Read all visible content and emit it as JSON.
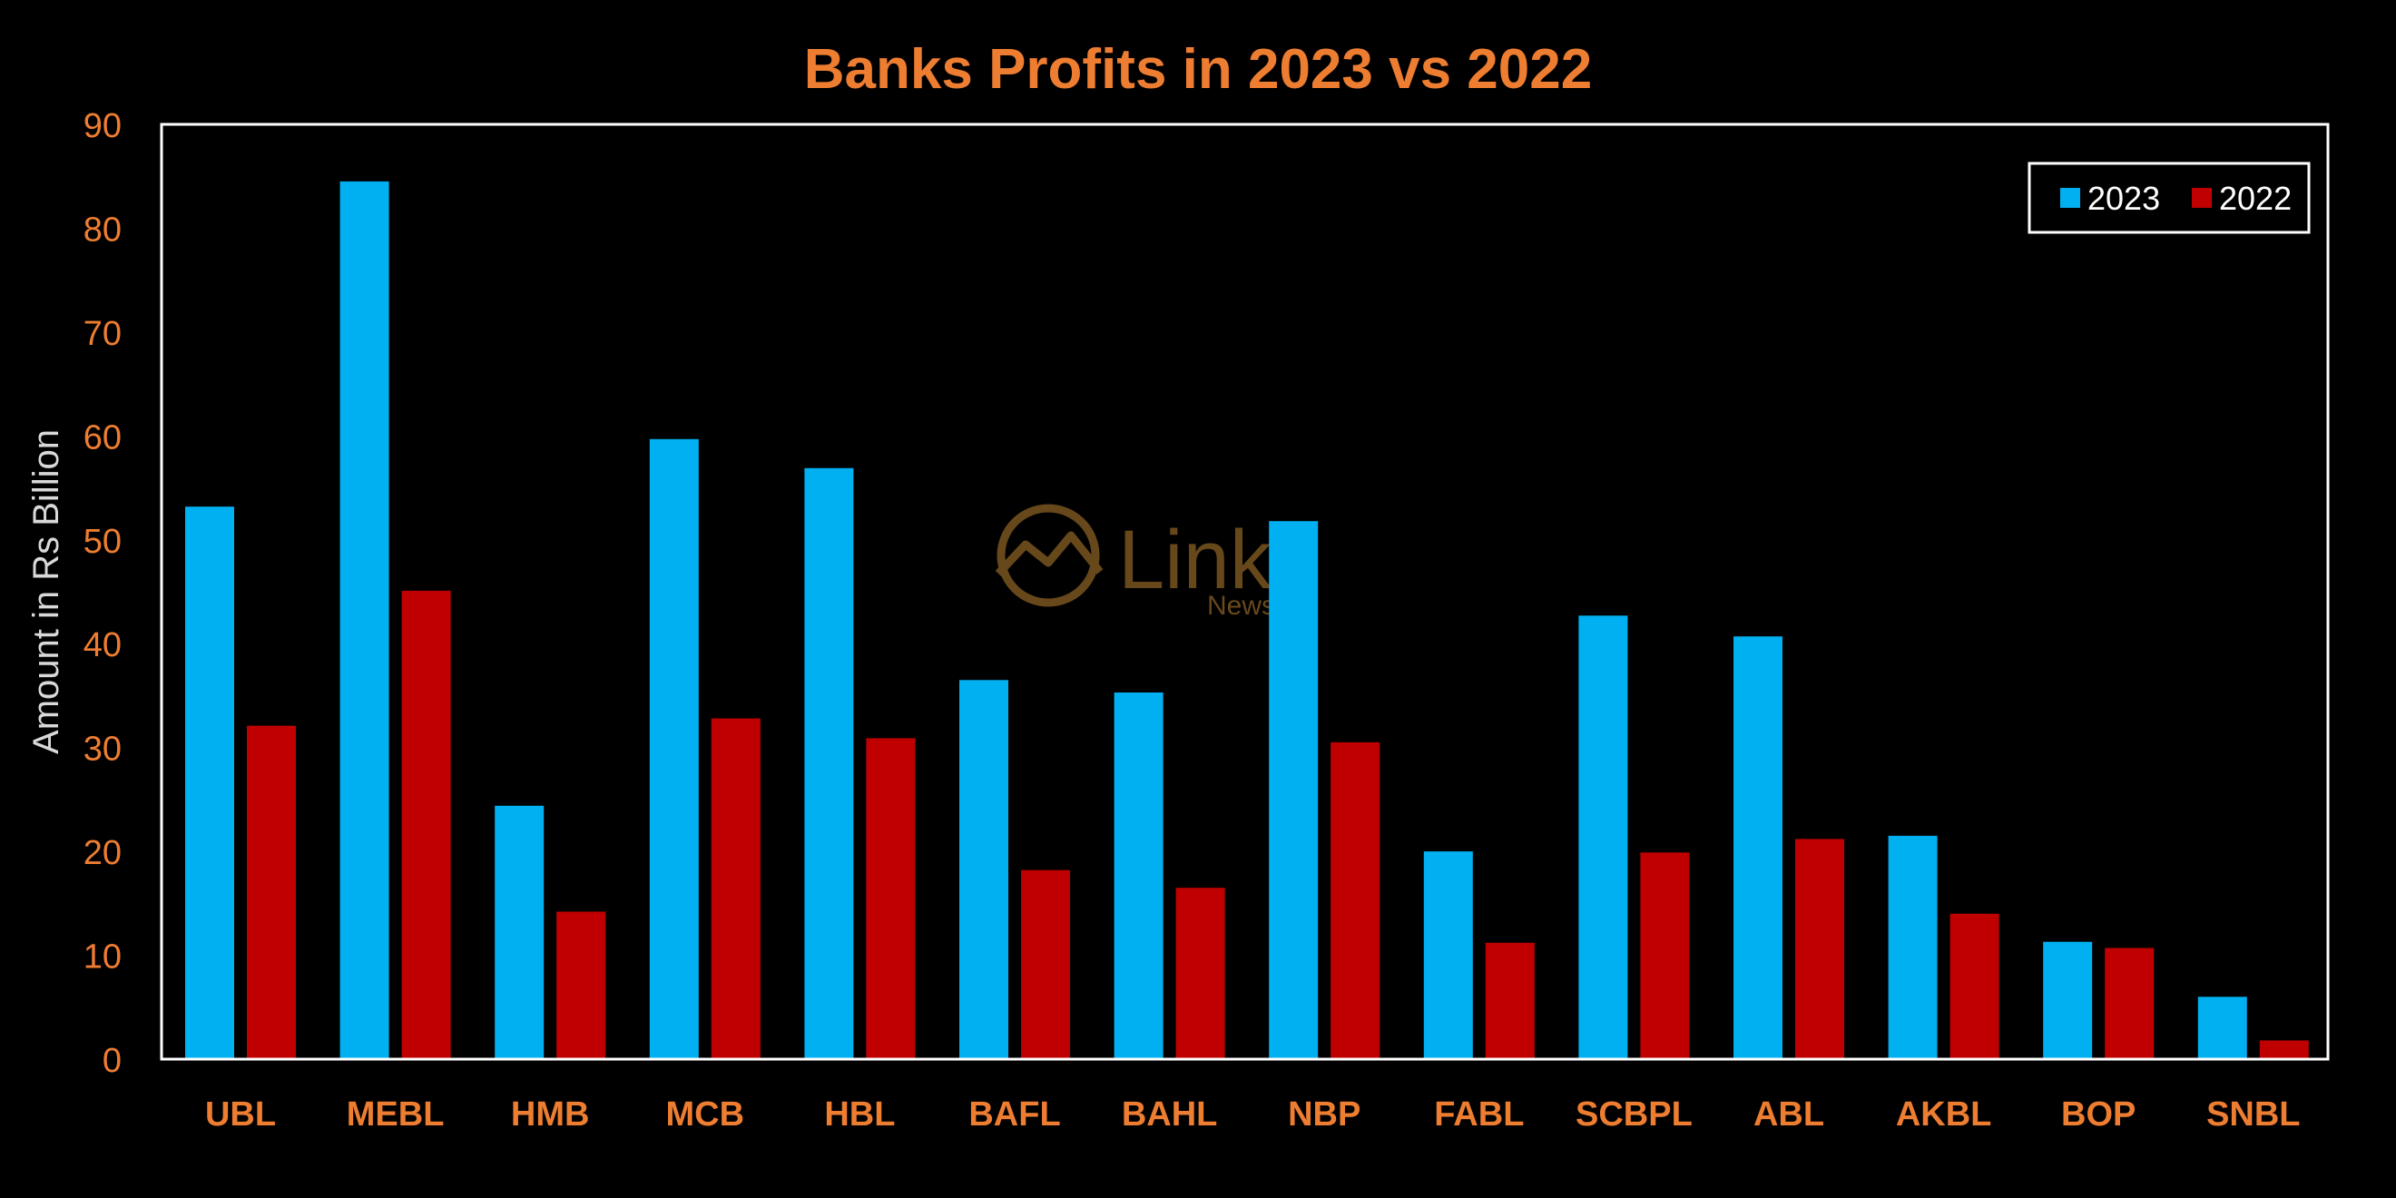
{
  "colors": {
    "background": "#000000",
    "accent_text": "#ED7D31",
    "series_2023": "#00B0F0",
    "series_2022": "#C00000",
    "frame": "#FFFFFF",
    "axis_label": "#D9D9D9",
    "watermark": "#7A5520"
  },
  "watermark": {
    "icon": "chart-line-circle-icon",
    "brand": "Link",
    "sub": "News"
  },
  "chart_data": {
    "type": "bar",
    "title": "Banks Profits in 2023 vs 2022",
    "xlabel": "",
    "ylabel": "Amount in Rs Billion",
    "ylim": [
      0,
      90
    ],
    "yticks": [
      "0",
      "10",
      "20",
      "30",
      "40",
      "50",
      "60",
      "70",
      "80",
      "90"
    ],
    "grid": false,
    "legend_position": "top-right",
    "categories": [
      "UBL",
      "MEBL",
      "HMB",
      "MCB",
      "HBL",
      "BAFL",
      "BAHL",
      "NBP",
      "FABL",
      "SCBPL",
      "ABL",
      "AKBL",
      "BOP",
      "SNBL"
    ],
    "series": [
      {
        "name": "2023",
        "values": [
          53.2,
          84.5,
          24.4,
          59.7,
          56.9,
          36.5,
          35.3,
          51.8,
          20.0,
          42.7,
          40.7,
          21.5,
          11.3,
          6.0
        ]
      },
      {
        "name": "2022",
        "values": [
          32.1,
          45.1,
          14.2,
          32.8,
          30.9,
          18.2,
          16.5,
          30.5,
          11.2,
          19.9,
          21.2,
          14.0,
          10.7,
          1.8
        ]
      }
    ]
  }
}
